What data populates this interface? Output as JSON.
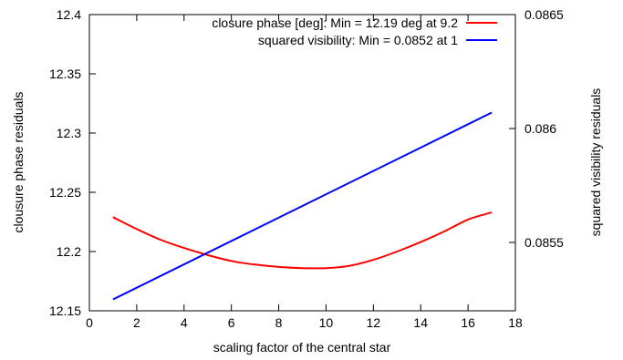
{
  "chart_data": {
    "type": "line",
    "xlabel": "scaling factor of the central star",
    "ylabel": "clousure phase residuals",
    "y2label": "squared visibility residuals",
    "xlim": [
      0,
      18
    ],
    "ylim": [
      12.15,
      12.4
    ],
    "y2lim": [
      0.0852,
      0.0865
    ],
    "xticks": [
      "0",
      "2",
      "4",
      "6",
      "8",
      "10",
      "12",
      "14",
      "16",
      "18"
    ],
    "yticks": [
      "12.15",
      "12.2",
      "12.25",
      "12.3",
      "12.35",
      "12.4"
    ],
    "y2ticks": [
      "0.0855",
      "0.086",
      "0.0865"
    ],
    "grid": false,
    "legend_position": "top-right",
    "series": [
      {
        "name": "closure phase [deg]: Min = 12.19 deg at 9.2",
        "axis": "left",
        "color": "#ff0000",
        "x": [
          1,
          2,
          3,
          4,
          5,
          6,
          7,
          8,
          9,
          10,
          11,
          12,
          13,
          14,
          15,
          16,
          17
        ],
        "y": [
          12.229,
          12.219,
          12.21,
          12.203,
          12.197,
          12.192,
          12.189,
          12.187,
          12.186,
          12.186,
          12.188,
          12.193,
          12.2,
          12.208,
          12.217,
          12.227,
          12.233
        ]
      },
      {
        "name": "squared visibility: Min = 0.0852 at 1",
        "axis": "right",
        "color": "#0000ff",
        "x": [
          1,
          17
        ],
        "y": [
          0.08525,
          0.08607
        ]
      }
    ]
  }
}
